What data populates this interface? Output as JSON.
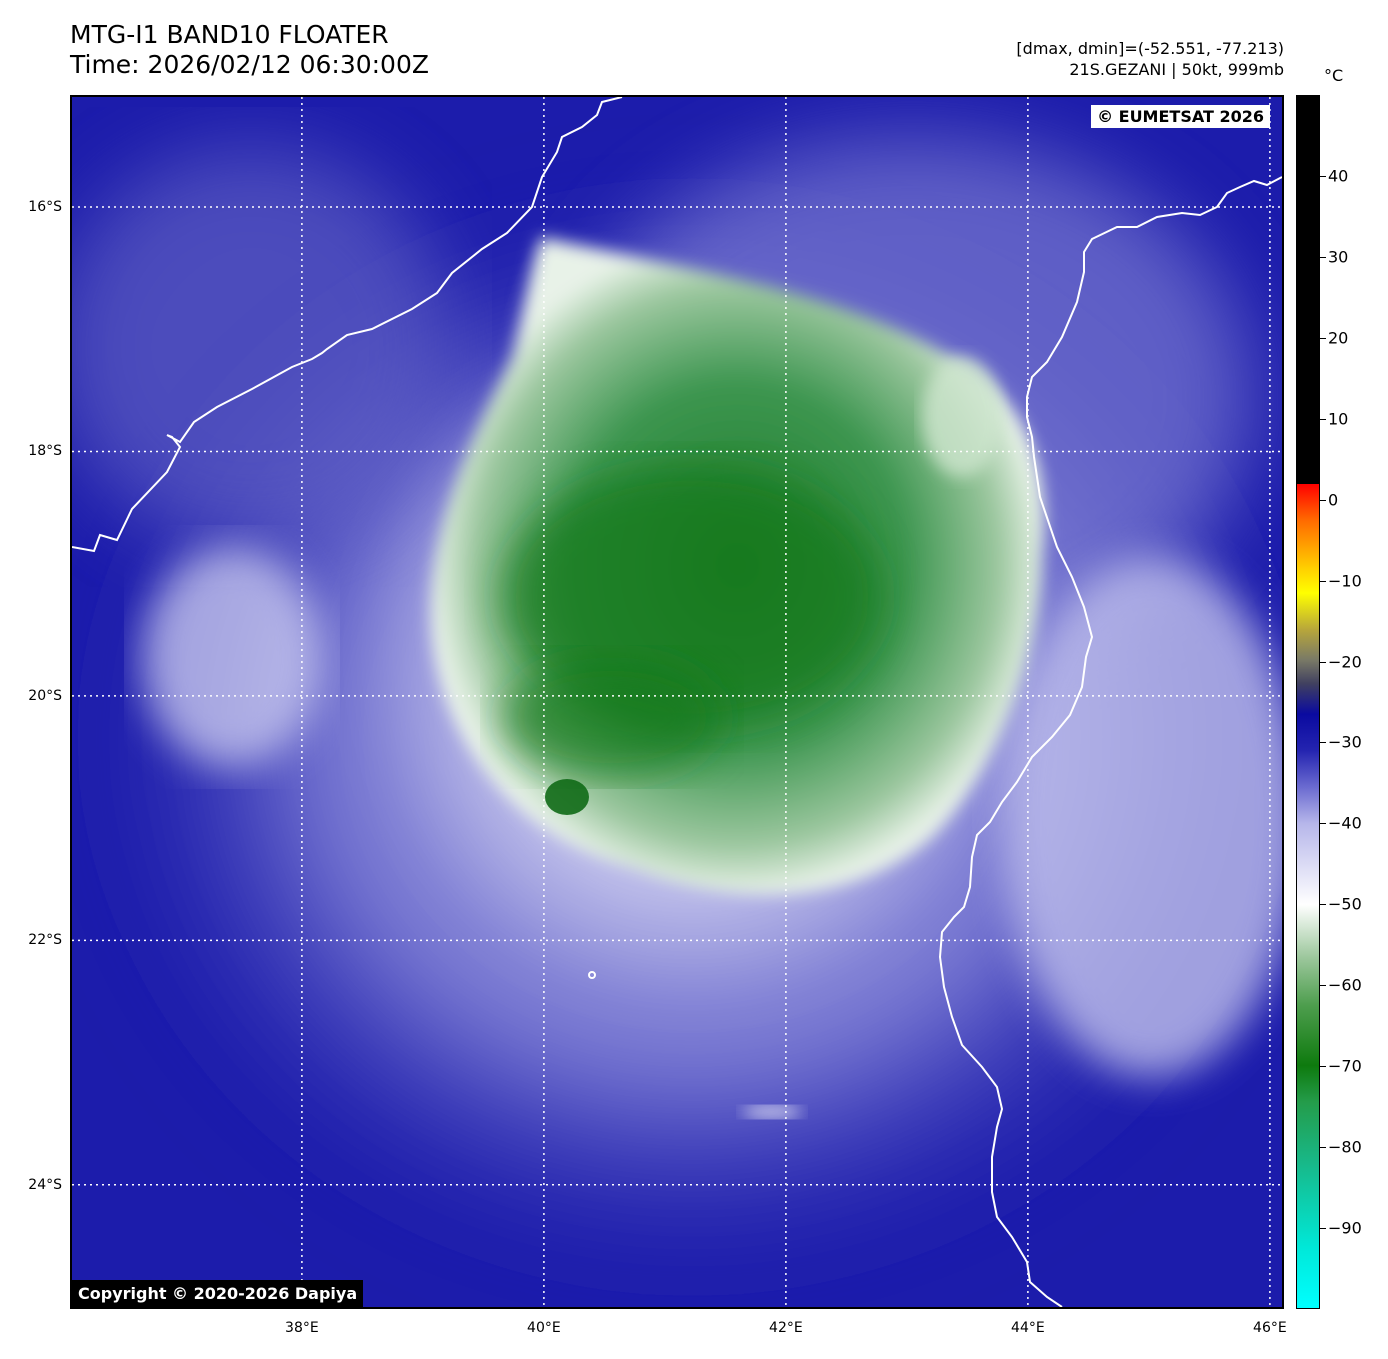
{
  "header": {
    "title_line1": "MTG-I1 BAND10 FLOATER",
    "title_line2": "Time: 2026/02/12 06:30:00Z",
    "range_text": "[dmax, dmin]=(-52.551, -77.213)",
    "storm_text": "21S.GEZANI | 50kt, 999mb"
  },
  "credits": {
    "top_right": "© EUMETSAT 2026",
    "bottom_left": "Copyright © 2020-2026 Dapiya"
  },
  "colorbar": {
    "unit": "°C",
    "range": [
      -100,
      50
    ],
    "ticks": [
      "40",
      "30",
      "20",
      "10",
      "0",
      "−10",
      "−20",
      "−30",
      "−40",
      "−50",
      "−60",
      "−70",
      "−80",
      "−90"
    ],
    "tick_values": [
      40,
      30,
      20,
      10,
      0,
      -10,
      -20,
      -30,
      -40,
      -50,
      -60,
      -70,
      -80,
      -90
    ]
  },
  "map": {
    "lon_range": [
      36.1,
      46.1
    ],
    "lat_range": [
      -25.0,
      -15.1
    ],
    "lat_labels": [
      "16°S",
      "18°S",
      "20°S",
      "22°S",
      "24°S"
    ],
    "lat_values": [
      -16,
      -18,
      -20,
      -22,
      -24
    ],
    "lon_labels": [
      "38°E",
      "40°E",
      "42°E",
      "44°E",
      "46°E"
    ],
    "lon_values": [
      38,
      40,
      42,
      44,
      46
    ],
    "colors": {
      "background_blue": "#1e1eae",
      "cloud_white": "#e8e8f6",
      "cold_top_green": "#2e8e3e",
      "coastline": "#ffffff"
    }
  }
}
